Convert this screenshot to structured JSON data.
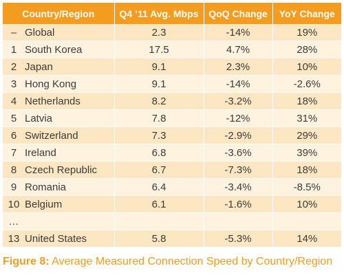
{
  "table": {
    "headers": [
      "Country/Region",
      "Q4 ’11 Avg. Mbps",
      "QoQ Change",
      "YoY Change"
    ],
    "rows": [
      {
        "rank": "–",
        "country": "Global",
        "avg": "2.3",
        "qoq": "-14%",
        "yoy": "19%"
      },
      {
        "rank": "1",
        "country": "South Korea",
        "avg": "17.5",
        "qoq": "4.7%",
        "yoy": "28%"
      },
      {
        "rank": "2",
        "country": "Japan",
        "avg": "9.1",
        "qoq": "2.3%",
        "yoy": "10%"
      },
      {
        "rank": "3",
        "country": "Hong Kong",
        "avg": "9.1",
        "qoq": "-14%",
        "yoy": "-2.6%"
      },
      {
        "rank": "4",
        "country": "Netherlands",
        "avg": "8.2",
        "qoq": "-3.2%",
        "yoy": "18%"
      },
      {
        "rank": "5",
        "country": "Latvia",
        "avg": "7.8",
        "qoq": "-12%",
        "yoy": "31%"
      },
      {
        "rank": "6",
        "country": "Switzerland",
        "avg": "7.3",
        "qoq": "-2.9%",
        "yoy": "29%"
      },
      {
        "rank": "7",
        "country": "Ireland",
        "avg": "6.8",
        "qoq": "-3.6%",
        "yoy": "39%"
      },
      {
        "rank": "8",
        "country": "Czech Republic",
        "avg": "6.7",
        "qoq": "-7.3%",
        "yoy": "18%"
      },
      {
        "rank": "9",
        "country": "Romania",
        "avg": "6.4",
        "qoq": "-3.4%",
        "yoy": "-8.5%"
      },
      {
        "rank": "10",
        "country": "Belgium",
        "avg": "6.1",
        "qoq": "-1.6%",
        "yoy": "10%"
      },
      {
        "rank": "…",
        "country": "",
        "avg": "",
        "qoq": "",
        "yoy": ""
      },
      {
        "rank": "13",
        "country": "United States",
        "avg": "5.8",
        "qoq": "-5.3%",
        "yoy": "14%"
      }
    ]
  },
  "caption": {
    "label": "Figure 8:",
    "text": " Average Measured Connection Speed by Country/Region"
  },
  "colors": {
    "header": "#f39c20",
    "row_odd": "#fde7c2",
    "row_even": "#fff3df",
    "caption": "#f39c20"
  }
}
